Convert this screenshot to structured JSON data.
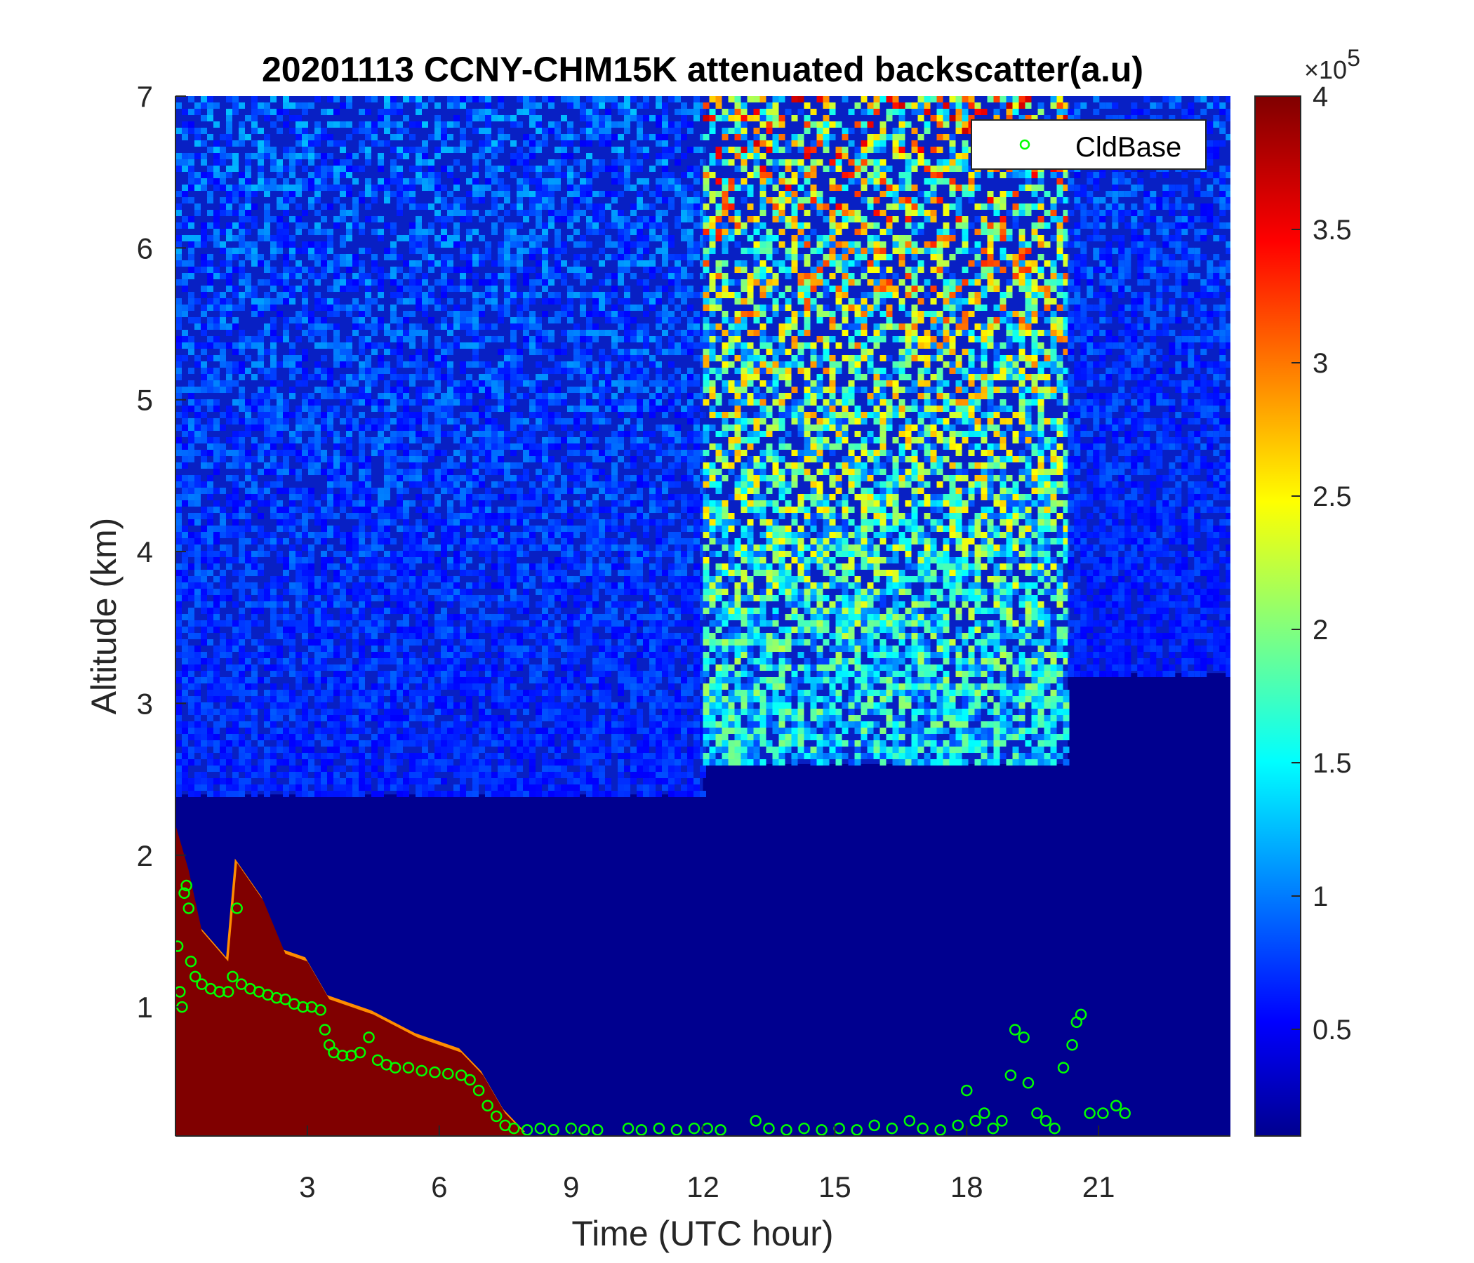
{
  "chart_data": {
    "type": "heatmap",
    "title": "20201113 CCNY-CHM15K attenuated backscatter(a.u)",
    "xlabel": "Time (UTC hour)",
    "ylabel": "Altitude (km)",
    "xlim": [
      0,
      24
    ],
    "ylim": [
      0.15,
      7
    ],
    "x_ticks": [
      3,
      6,
      9,
      12,
      15,
      18,
      21
    ],
    "x_tick_labels": [
      "3",
      "6",
      "9",
      "12",
      "15",
      "18",
      "21"
    ],
    "y_ticks": [
      1,
      2,
      3,
      4,
      5,
      6,
      7
    ],
    "y_tick_labels": [
      "1",
      "2",
      "3",
      "4",
      "5",
      "6",
      "7"
    ],
    "colorbar": {
      "colormap": "jet",
      "clim": [
        10000,
        400000
      ],
      "ticks": [
        50000,
        100000,
        150000,
        200000,
        250000,
        300000,
        350000,
        400000
      ],
      "tick_labels": [
        "0.5",
        "1",
        "1.5",
        "2",
        "2.5",
        "3",
        "3.5",
        "4"
      ],
      "exponent_label": "×10",
      "exponent_power": "5"
    },
    "legend": {
      "placement": "top-right",
      "entries": [
        "CldBase"
      ]
    },
    "background_noise_regions": [
      {
        "x_range": [
          0,
          12
        ],
        "base_km": 2.4,
        "intensity": "low-moderate speckle"
      },
      {
        "x_range": [
          12,
          20.3
        ],
        "base_km": 2.6,
        "intensity": "high speckle"
      },
      {
        "x_range": [
          20.3,
          24
        ],
        "base_km": 3.2,
        "intensity": "low speckle"
      }
    ],
    "aerosol_layer": [
      {
        "x": 0.0,
        "top_km": 2.2
      },
      {
        "x": 0.3,
        "top_km": 1.9
      },
      {
        "x": 0.6,
        "top_km": 1.5
      },
      {
        "x": 1.2,
        "top_km": 1.3
      },
      {
        "x": 1.4,
        "top_km": 1.95
      },
      {
        "x": 2.0,
        "top_km": 1.7
      },
      {
        "x": 2.5,
        "top_km": 1.35
      },
      {
        "x": 3.0,
        "top_km": 1.3
      },
      {
        "x": 3.5,
        "top_km": 1.05
      },
      {
        "x": 4.5,
        "top_km": 0.95
      },
      {
        "x": 5.5,
        "top_km": 0.8
      },
      {
        "x": 6.5,
        "top_km": 0.7
      },
      {
        "x": 7.0,
        "top_km": 0.55
      },
      {
        "x": 7.5,
        "top_km": 0.3
      },
      {
        "x": 8.0,
        "top_km": 0.15
      }
    ],
    "series": [
      {
        "name": "CldBase",
        "marker": "open-circle",
        "color": "#00ff00",
        "points": [
          [
            0.05,
            1.4
          ],
          [
            0.1,
            1.1
          ],
          [
            0.15,
            1.0
          ],
          [
            0.2,
            1.75
          ],
          [
            0.25,
            1.8
          ],
          [
            0.3,
            1.65
          ],
          [
            0.35,
            1.3
          ],
          [
            0.45,
            1.2
          ],
          [
            0.6,
            1.15
          ],
          [
            0.8,
            1.12
          ],
          [
            1.0,
            1.1
          ],
          [
            1.2,
            1.1
          ],
          [
            1.3,
            1.2
          ],
          [
            1.4,
            1.65
          ],
          [
            1.5,
            1.15
          ],
          [
            1.7,
            1.12
          ],
          [
            1.9,
            1.1
          ],
          [
            2.1,
            1.08
          ],
          [
            2.3,
            1.06
          ],
          [
            2.5,
            1.05
          ],
          [
            2.7,
            1.02
          ],
          [
            2.9,
            1.0
          ],
          [
            3.1,
            1.0
          ],
          [
            3.3,
            0.98
          ],
          [
            3.4,
            0.85
          ],
          [
            3.5,
            0.75
          ],
          [
            3.6,
            0.7
          ],
          [
            3.8,
            0.68
          ],
          [
            4.0,
            0.68
          ],
          [
            4.2,
            0.7
          ],
          [
            4.4,
            0.8
          ],
          [
            4.6,
            0.65
          ],
          [
            4.8,
            0.62
          ],
          [
            5.0,
            0.6
          ],
          [
            5.3,
            0.6
          ],
          [
            5.6,
            0.58
          ],
          [
            5.9,
            0.57
          ],
          [
            6.2,
            0.56
          ],
          [
            6.5,
            0.55
          ],
          [
            6.7,
            0.52
          ],
          [
            6.9,
            0.45
          ],
          [
            7.1,
            0.35
          ],
          [
            7.3,
            0.28
          ],
          [
            7.5,
            0.22
          ],
          [
            7.7,
            0.2
          ],
          [
            8.0,
            0.19
          ],
          [
            8.3,
            0.2
          ],
          [
            8.6,
            0.19
          ],
          [
            9.0,
            0.2
          ],
          [
            9.3,
            0.19
          ],
          [
            9.6,
            0.19
          ],
          [
            10.3,
            0.2
          ],
          [
            10.6,
            0.19
          ],
          [
            11.0,
            0.2
          ],
          [
            11.4,
            0.19
          ],
          [
            11.8,
            0.2
          ],
          [
            12.1,
            0.2
          ],
          [
            12.4,
            0.19
          ],
          [
            13.2,
            0.25
          ],
          [
            13.5,
            0.2
          ],
          [
            13.9,
            0.19
          ],
          [
            14.3,
            0.2
          ],
          [
            14.7,
            0.19
          ],
          [
            15.1,
            0.2
          ],
          [
            15.5,
            0.19
          ],
          [
            15.9,
            0.22
          ],
          [
            16.3,
            0.2
          ],
          [
            16.7,
            0.25
          ],
          [
            17.0,
            0.2
          ],
          [
            17.4,
            0.19
          ],
          [
            17.8,
            0.22
          ],
          [
            18.0,
            0.45
          ],
          [
            18.2,
            0.25
          ],
          [
            18.4,
            0.3
          ],
          [
            18.6,
            0.2
          ],
          [
            18.8,
            0.25
          ],
          [
            19.0,
            0.55
          ],
          [
            19.1,
            0.85
          ],
          [
            19.3,
            0.8
          ],
          [
            19.4,
            0.5
          ],
          [
            19.6,
            0.3
          ],
          [
            19.8,
            0.25
          ],
          [
            20.0,
            0.2
          ],
          [
            20.2,
            0.6
          ],
          [
            20.4,
            0.75
          ],
          [
            20.5,
            0.9
          ],
          [
            20.6,
            0.95
          ],
          [
            20.8,
            0.3
          ],
          [
            21.1,
            0.3
          ],
          [
            21.4,
            0.35
          ],
          [
            21.6,
            0.3
          ]
        ]
      }
    ]
  }
}
